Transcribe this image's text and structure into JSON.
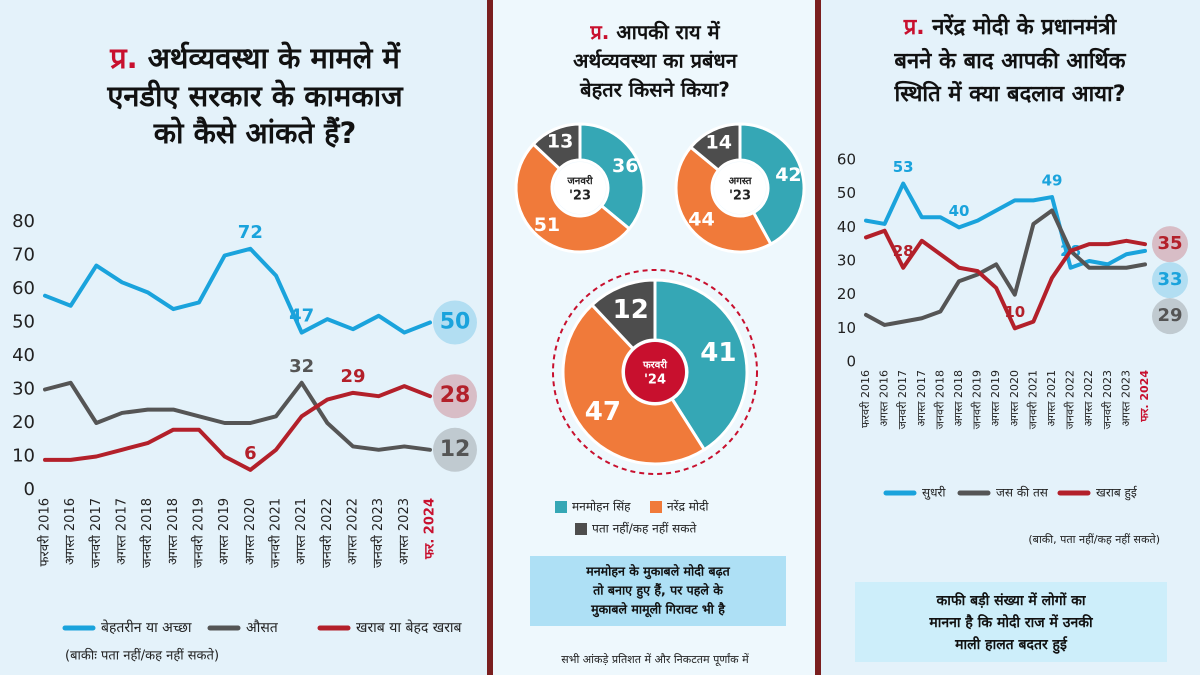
{
  "chart_data": [
    {
      "type": "line",
      "title_prefix": "प्र.",
      "title": [
        "अर्थव्यवस्था के मामले में",
        "एनडीए सरकार के कामकाज",
        "को कैसे आंकते हैं?"
      ],
      "categories": [
        "फरवरी 2016",
        "अगस्त 2016",
        "जनवरी 2017",
        "अगस्त 2017",
        "जनवरी 2018",
        "अगस्त 2018",
        "जनवरी 2019",
        "अगस्त 2019",
        "अगस्त 2020",
        "जनवरी 2021",
        "अगस्त 2021",
        "जनवरी 2022",
        "अगस्त 2022",
        "जनवरी 2023",
        "अगस्त 2023",
        "फर. 2024"
      ],
      "series": [
        {
          "name": "बेहतरीन या अच्छा",
          "color": "#1aa3dc",
          "values": [
            58,
            55,
            67,
            62,
            59,
            54,
            56,
            70,
            72,
            64,
            47,
            51,
            48,
            52,
            47,
            50
          ],
          "labeled": [
            8,
            10,
            15
          ]
        },
        {
          "name": "औसत",
          "color": "#555555",
          "values": [
            30,
            32,
            20,
            23,
            24,
            24,
            22,
            20,
            20,
            22,
            32,
            20,
            13,
            12,
            13,
            12
          ],
          "labeled": [
            10,
            15
          ]
        },
        {
          "name": "खराब या बेहद खराब",
          "color": "#b3202a",
          "values": [
            9,
            9,
            10,
            12,
            14,
            18,
            18,
            10,
            6,
            12,
            22,
            27,
            29,
            28,
            31,
            28
          ],
          "labeled": [
            8,
            12,
            15
          ]
        }
      ],
      "ylim": [
        0,
        80
      ],
      "yticks": [
        0,
        10,
        20,
        30,
        40,
        50,
        60,
        70,
        80
      ],
      "last_category_color": "#c8102e",
      "note": "(बाकीः पता नहीं/कह नहीं सकते)"
    },
    {
      "type": "donut",
      "title_prefix": "प्र.",
      "title": [
        "आपकी राय में",
        "अर्थव्यवस्था का प्रबंधन",
        "बेहतर किसने किया?"
      ],
      "series_names": [
        "मनमोहन सिंह",
        "नरेंद्र मोदी",
        "पता नहीं/कह नहीं सकते"
      ],
      "colors": [
        "#35a7b5",
        "#f07a3a",
        "#4d4d4d"
      ],
      "donuts": [
        {
          "label": [
            "जनवरी",
            "'23"
          ],
          "values": [
            36,
            51,
            13
          ]
        },
        {
          "label": [
            "अगस्त",
            "'23"
          ],
          "values": [
            42,
            44,
            14
          ]
        },
        {
          "label": [
            "फरवरी",
            "'24"
          ],
          "values": [
            41,
            47,
            12
          ],
          "highlight": true
        }
      ],
      "note": [
        "मनमोहन के मुकाबले मोदी बढ़त",
        "तो बनाए हुए हैं, पर पहले के",
        "मुकाबले मामूली गिरावट भी है"
      ],
      "footnote": "सभी आंकड़े प्रतिशत में और निकटतम पूर्णांक में"
    },
    {
      "type": "line",
      "title_prefix": "प्र.",
      "title": [
        "नरेंद्र मोदी के प्रधानमंत्री",
        "बनने के बाद आपकी आर्थिक",
        "स्थिति में क्या बदलाव आया?"
      ],
      "categories": [
        "फरवरी 2016",
        "अगस्त 2016",
        "जनवरी 2017",
        "अगस्त 2017",
        "जनवरी 2018",
        "अगस्त 2018",
        "जनवरी 2019",
        "अगस्त 2019",
        "अगस्त 2020",
        "जनवरी 2021",
        "अगस्त 2021",
        "जनवरी 2022",
        "अगस्त 2022",
        "जनवरी 2023",
        "अगस्त 2023",
        "फर. 2024"
      ],
      "series": [
        {
          "name": "सुधरी",
          "color": "#1aa3dc",
          "values": [
            42,
            41,
            53,
            43,
            43,
            40,
            42,
            45,
            48,
            48,
            49,
            28,
            30,
            29,
            32,
            33
          ],
          "labeled": [
            2,
            5,
            10,
            11,
            15
          ]
        },
        {
          "name": "जस की तस",
          "color": "#555555",
          "values": [
            14,
            11,
            12,
            13,
            15,
            24,
            26,
            29,
            20,
            41,
            45,
            33,
            28,
            28,
            28,
            29
          ],
          "labeled": [
            15
          ]
        },
        {
          "name": "खराब हुई",
          "color": "#b3202a",
          "values": [
            37,
            39,
            28,
            36,
            32,
            28,
            27,
            22,
            10,
            12,
            25,
            33,
            35,
            35,
            36,
            35
          ],
          "labeled": [
            2,
            8,
            15
          ]
        }
      ],
      "ylim": [
        0,
        60
      ],
      "yticks": [
        0,
        10,
        20,
        30,
        40,
        50,
        60
      ],
      "last_category_color": "#c8102e",
      "note": "(बाकी, पता नहीं/कह नहीं सकते)",
      "box": [
        "काफी बड़ी संख्या में लोगों का",
        "मानना है कि मोदी राज में उनकी",
        "माली हालत बदतर हुई"
      ]
    }
  ]
}
